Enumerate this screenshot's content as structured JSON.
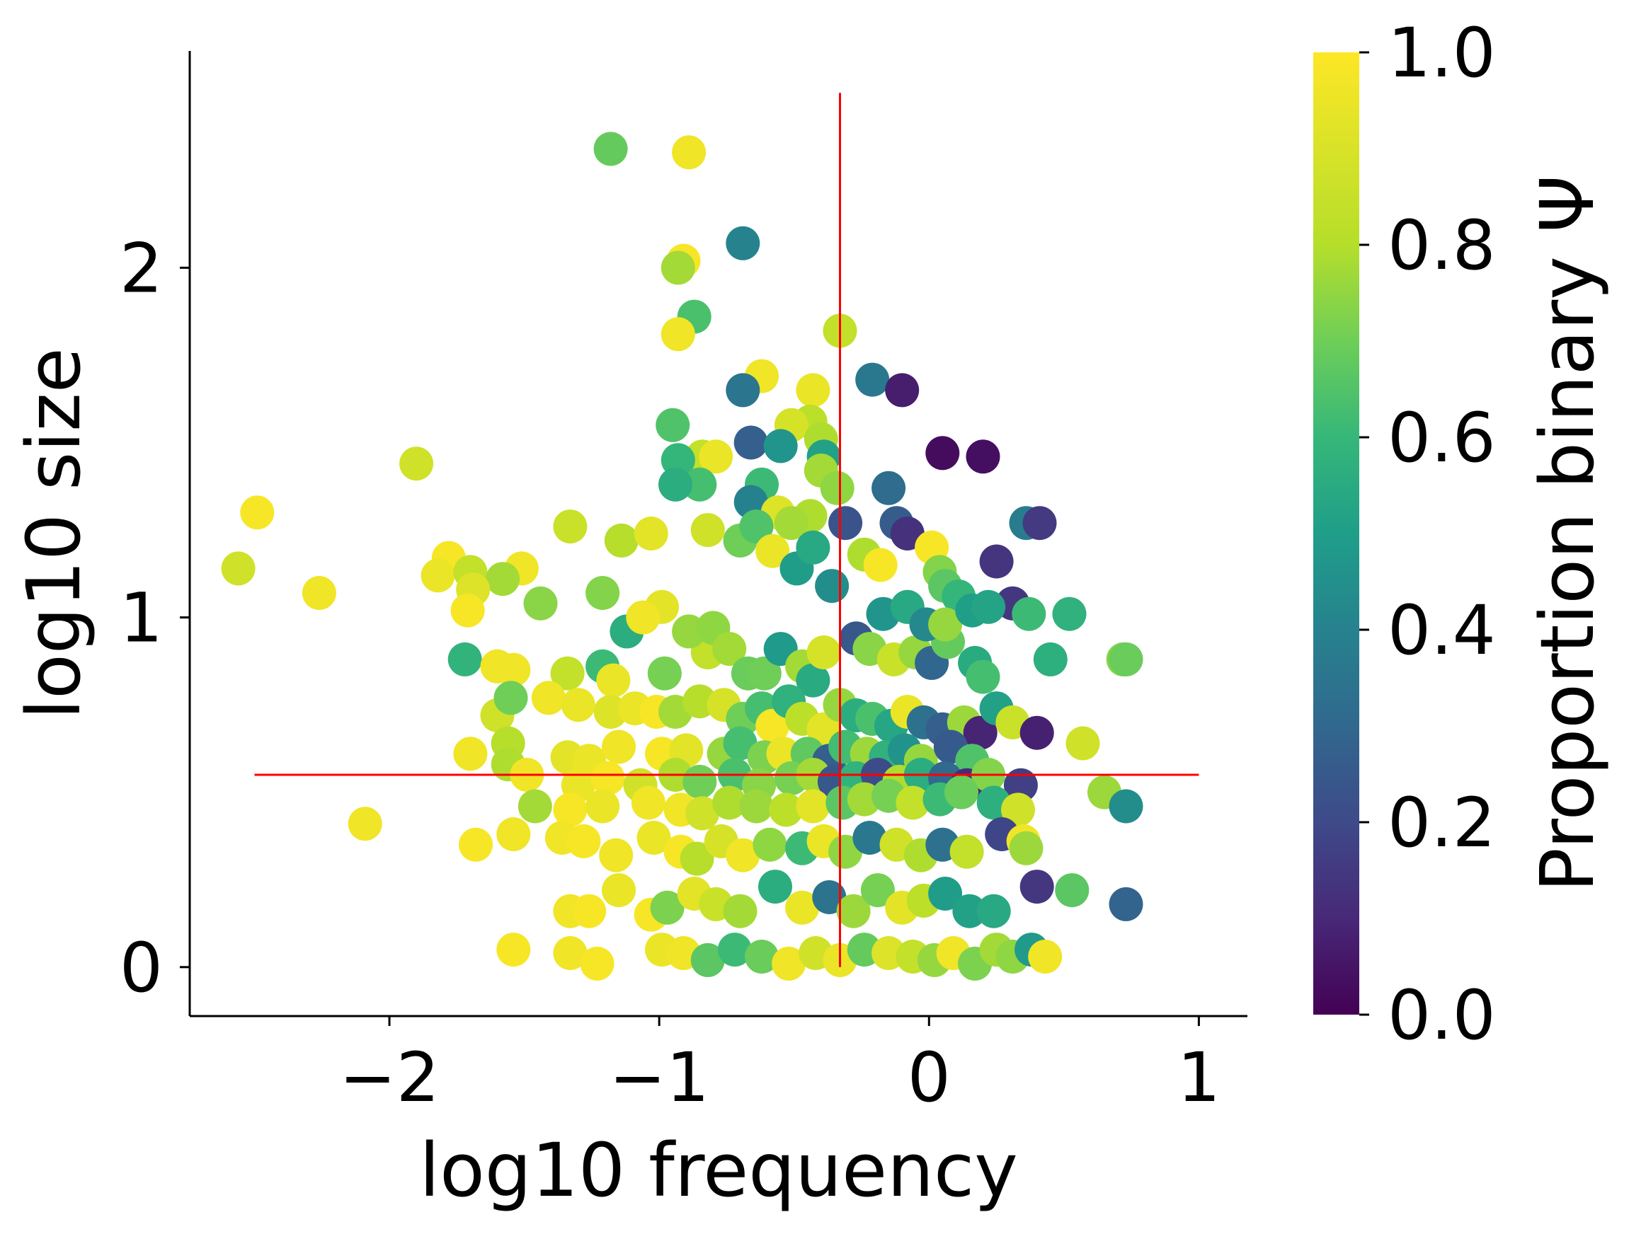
{
  "chart_data": {
    "type": "scatter",
    "xlabel": "log10 frequency",
    "ylabel": "log10 size",
    "xlim": [
      -2.74,
      1.18
    ],
    "ylim": [
      -0.14,
      2.62
    ],
    "xticks": [
      -2,
      -1,
      0,
      1
    ],
    "xtick_labels": [
      "−2",
      "−1",
      "0",
      "1"
    ],
    "yticks": [
      0,
      1,
      2
    ],
    "ytick_labels": [
      "0",
      "1",
      "2"
    ],
    "grid": false,
    "colorbar": {
      "label": "Proportion binary Ψ",
      "range": [
        0,
        1
      ],
      "ticks": [
        0.0,
        0.2,
        0.4,
        0.6,
        0.8,
        1.0
      ],
      "tick_labels": [
        "0.0",
        "0.2",
        "0.4",
        "0.6",
        "0.8",
        "1.0"
      ],
      "colormap": "viridis"
    },
    "reference_lines": [
      {
        "orientation": "vertical",
        "x": -0.33,
        "y_range": [
          0.0,
          2.5
        ],
        "color": "#ff0000"
      },
      {
        "orientation": "horizontal",
        "y": 0.55,
        "x_range": [
          -2.5,
          1.0
        ],
        "color": "#ff0000"
      }
    ],
    "points": [
      [
        -1.18,
        2.34,
        0.76
      ],
      [
        -0.89,
        2.33,
        0.98
      ],
      [
        -0.69,
        2.07,
        0.45
      ],
      [
        -0.91,
        2.02,
        0.99
      ],
      [
        -0.93,
        2.0,
        0.86
      ],
      [
        -0.87,
        1.86,
        0.71
      ],
      [
        -0.93,
        1.81,
        0.98
      ],
      [
        -0.62,
        1.69,
        0.98
      ],
      [
        -0.33,
        1.82,
        0.91
      ],
      [
        -0.21,
        1.68,
        0.4
      ],
      [
        -0.1,
        1.65,
        0.08
      ],
      [
        -0.69,
        1.65,
        0.39
      ],
      [
        -0.43,
        1.65,
        0.97
      ],
      [
        -0.44,
        1.56,
        0.9
      ],
      [
        -0.51,
        1.55,
        0.94
      ],
      [
        -0.95,
        1.55,
        0.72
      ],
      [
        -0.66,
        1.5,
        0.3
      ],
      [
        -0.55,
        1.49,
        0.52
      ],
      [
        -0.4,
        1.51,
        0.88
      ],
      [
        -0.39,
        1.46,
        0.57
      ],
      [
        -0.84,
        1.46,
        0.91
      ],
      [
        -0.79,
        1.46,
        0.97
      ],
      [
        -0.93,
        1.45,
        0.66
      ],
      [
        -1.9,
        1.44,
        0.93
      ],
      [
        0.05,
        1.47,
        0.03
      ],
      [
        0.2,
        1.46,
        0.04
      ],
      [
        -0.4,
        1.42,
        0.86
      ],
      [
        -0.34,
        1.37,
        0.83
      ],
      [
        -0.15,
        1.37,
        0.35
      ],
      [
        -0.62,
        1.38,
        0.68
      ],
      [
        -0.85,
        1.38,
        0.7
      ],
      [
        -0.94,
        1.38,
        0.62
      ],
      [
        -0.66,
        1.33,
        0.44
      ],
      [
        -0.56,
        1.3,
        0.95
      ],
      [
        -0.44,
        1.29,
        0.88
      ],
      [
        -0.31,
        1.27,
        0.26
      ],
      [
        -0.12,
        1.27,
        0.29
      ],
      [
        -0.08,
        1.24,
        0.14
      ],
      [
        0.36,
        1.27,
        0.42
      ],
      [
        0.41,
        1.27,
        0.17
      ],
      [
        -2.49,
        1.3,
        0.99
      ],
      [
        -2.56,
        1.14,
        0.93
      ],
      [
        -2.26,
        1.07,
        0.98
      ],
      [
        -1.78,
        1.17,
        0.99
      ],
      [
        -1.82,
        1.12,
        0.97
      ],
      [
        -1.7,
        1.13,
        0.91
      ],
      [
        -1.51,
        1.14,
        0.98
      ],
      [
        -1.58,
        1.11,
        0.86
      ],
      [
        -1.69,
        1.08,
        0.95
      ],
      [
        -1.71,
        1.02,
        0.99
      ],
      [
        -1.44,
        1.04,
        0.82
      ],
      [
        -1.33,
        1.26,
        0.92
      ],
      [
        -1.14,
        1.22,
        0.89
      ],
      [
        -1.03,
        1.24,
        0.96
      ],
      [
        -1.21,
        1.07,
        0.81
      ],
      [
        -1.12,
        0.96,
        0.62
      ],
      [
        -0.99,
        1.03,
        0.96
      ],
      [
        -1.06,
        1.0,
        0.98
      ],
      [
        -0.82,
        1.25,
        0.93
      ],
      [
        -0.7,
        1.22,
        0.78
      ],
      [
        -0.64,
        1.26,
        0.72
      ],
      [
        -0.58,
        1.19,
        0.97
      ],
      [
        -0.51,
        1.27,
        0.86
      ],
      [
        -0.49,
        1.14,
        0.55
      ],
      [
        -0.43,
        1.2,
        0.6
      ],
      [
        -0.36,
        1.09,
        0.49
      ],
      [
        -0.24,
        1.18,
        0.88
      ],
      [
        -0.18,
        1.15,
        0.99
      ],
      [
        0.01,
        1.2,
        0.99
      ],
      [
        0.04,
        1.13,
        0.81
      ],
      [
        0.06,
        1.09,
        0.74
      ],
      [
        0.11,
        1.06,
        0.66
      ],
      [
        0.25,
        1.16,
        0.15
      ],
      [
        0.31,
        1.04,
        0.16
      ],
      [
        0.37,
        1.01,
        0.68
      ],
      [
        0.52,
        1.01,
        0.64
      ],
      [
        0.45,
        0.88,
        0.63
      ],
      [
        0.72,
        0.88,
        0.81
      ],
      [
        0.73,
        0.88,
        0.77
      ],
      [
        -1.72,
        0.88,
        0.65
      ],
      [
        -1.6,
        0.86,
        0.98
      ],
      [
        -1.54,
        0.85,
        0.98
      ],
      [
        -1.34,
        0.84,
        0.91
      ],
      [
        -1.21,
        0.86,
        0.68
      ],
      [
        -1.17,
        0.82,
        0.97
      ],
      [
        -0.98,
        0.84,
        0.79
      ],
      [
        -0.82,
        0.9,
        0.91
      ],
      [
        -0.89,
        0.96,
        0.84
      ],
      [
        -0.8,
        0.97,
        0.83
      ],
      [
        -0.74,
        0.91,
        0.86
      ],
      [
        -0.67,
        0.84,
        0.77
      ],
      [
        -0.61,
        0.84,
        0.78
      ],
      [
        -0.55,
        0.91,
        0.54
      ],
      [
        -0.47,
        0.86,
        0.86
      ],
      [
        -0.43,
        0.82,
        0.61
      ],
      [
        -0.39,
        0.9,
        0.94
      ],
      [
        -0.27,
        0.94,
        0.27
      ],
      [
        -0.22,
        0.91,
        0.82
      ],
      [
        -0.13,
        0.88,
        0.92
      ],
      [
        -0.05,
        0.9,
        0.84
      ],
      [
        0.01,
        0.87,
        0.33
      ],
      [
        0.07,
        0.93,
        0.76
      ],
      [
        0.17,
        0.87,
        0.61
      ],
      [
        0.2,
        0.83,
        0.7
      ],
      [
        -0.17,
        1.01,
        0.52
      ],
      [
        -0.08,
        1.03,
        0.6
      ],
      [
        -0.01,
        0.98,
        0.47
      ],
      [
        0.06,
        0.98,
        0.84
      ],
      [
        0.16,
        1.02,
        0.56
      ],
      [
        0.22,
        1.03,
        0.58
      ],
      [
        -1.6,
        0.72,
        0.93
      ],
      [
        -1.55,
        0.77,
        0.78
      ],
      [
        -1.41,
        0.77,
        0.98
      ],
      [
        -1.3,
        0.75,
        0.97
      ],
      [
        -1.18,
        0.73,
        0.95
      ],
      [
        -1.09,
        0.74,
        0.97
      ],
      [
        -1.01,
        0.73,
        0.99
      ],
      [
        -0.94,
        0.73,
        0.86
      ],
      [
        -0.85,
        0.76,
        0.89
      ],
      [
        -0.76,
        0.75,
        0.94
      ],
      [
        -0.69,
        0.71,
        0.78
      ],
      [
        -0.62,
        0.74,
        0.7
      ],
      [
        -0.58,
        0.69,
        0.99
      ],
      [
        -0.52,
        0.76,
        0.64
      ],
      [
        -0.47,
        0.71,
        0.9
      ],
      [
        -0.39,
        0.68,
        0.96
      ],
      [
        -0.33,
        0.75,
        0.84
      ],
      [
        -0.27,
        0.72,
        0.62
      ],
      [
        -0.21,
        0.71,
        0.71
      ],
      [
        -0.14,
        0.69,
        0.59
      ],
      [
        -0.08,
        0.73,
        0.97
      ],
      [
        -0.02,
        0.7,
        0.37
      ],
      [
        0.05,
        0.68,
        0.3
      ],
      [
        0.13,
        0.7,
        0.85
      ],
      [
        0.19,
        0.67,
        0.1
      ],
      [
        0.25,
        0.74,
        0.57
      ],
      [
        0.31,
        0.7,
        0.92
      ],
      [
        0.4,
        0.67,
        0.09
      ],
      [
        0.57,
        0.64,
        0.93
      ],
      [
        -1.7,
        0.61,
        0.98
      ],
      [
        -1.56,
        0.64,
        0.89
      ],
      [
        -1.56,
        0.58,
        0.88
      ],
      [
        -1.34,
        0.6,
        0.96
      ],
      [
        -1.26,
        0.59,
        0.97
      ],
      [
        -1.15,
        0.63,
        0.98
      ],
      [
        -0.99,
        0.61,
        0.99
      ],
      [
        -0.9,
        0.62,
        0.96
      ],
      [
        -0.76,
        0.61,
        0.84
      ],
      [
        -0.7,
        0.64,
        0.7
      ],
      [
        -0.61,
        0.6,
        0.8
      ],
      [
        -0.54,
        0.61,
        0.97
      ],
      [
        -0.45,
        0.61,
        0.75
      ],
      [
        -0.37,
        0.59,
        0.3
      ],
      [
        -0.31,
        0.63,
        0.69
      ],
      [
        -0.23,
        0.61,
        0.85
      ],
      [
        -0.16,
        0.6,
        0.64
      ],
      [
        -0.09,
        0.62,
        0.51
      ],
      [
        -0.03,
        0.59,
        0.84
      ],
      [
        0.08,
        0.63,
        0.28
      ],
      [
        0.16,
        0.59,
        0.72
      ],
      [
        -1.49,
        0.55,
        0.98
      ],
      [
        -1.3,
        0.52,
        0.97
      ],
      [
        -1.19,
        0.54,
        0.99
      ],
      [
        -1.07,
        0.52,
        0.93
      ],
      [
        -0.94,
        0.55,
        0.88
      ],
      [
        -0.85,
        0.53,
        0.78
      ],
      [
        -0.72,
        0.55,
        0.71
      ],
      [
        -0.63,
        0.52,
        0.82
      ],
      [
        -0.51,
        0.54,
        0.79
      ],
      [
        -0.43,
        0.55,
        0.86
      ],
      [
        -0.35,
        0.53,
        0.27
      ],
      [
        -0.27,
        0.54,
        0.65
      ],
      [
        -0.19,
        0.55,
        0.23
      ],
      [
        -0.11,
        0.53,
        0.88
      ],
      [
        -0.03,
        0.55,
        0.62
      ],
      [
        0.06,
        0.54,
        0.34
      ],
      [
        0.14,
        0.52,
        0.12
      ],
      [
        0.22,
        0.55,
        0.81
      ],
      [
        0.34,
        0.52,
        0.19
      ],
      [
        0.65,
        0.5,
        0.85
      ],
      [
        0.73,
        0.46,
        0.49
      ],
      [
        -2.09,
        0.41,
        0.98
      ],
      [
        -1.46,
        0.46,
        0.86
      ],
      [
        -1.33,
        0.45,
        0.99
      ],
      [
        -1.21,
        0.46,
        0.97
      ],
      [
        -1.04,
        0.47,
        0.98
      ],
      [
        -0.92,
        0.45,
        0.98
      ],
      [
        -0.84,
        0.44,
        0.93
      ],
      [
        -0.74,
        0.47,
        0.88
      ],
      [
        -0.64,
        0.46,
        0.85
      ],
      [
        -0.53,
        0.45,
        0.9
      ],
      [
        -0.43,
        0.46,
        0.96
      ],
      [
        -0.32,
        0.47,
        0.74
      ],
      [
        -0.24,
        0.48,
        0.86
      ],
      [
        -0.15,
        0.49,
        0.79
      ],
      [
        -0.06,
        0.47,
        0.91
      ],
      [
        0.04,
        0.48,
        0.68
      ],
      [
        0.12,
        0.5,
        0.77
      ],
      [
        0.24,
        0.47,
        0.63
      ],
      [
        0.33,
        0.45,
        0.93
      ],
      [
        -1.68,
        0.35,
        0.99
      ],
      [
        -1.54,
        0.38,
        0.98
      ],
      [
        -1.36,
        0.37,
        0.98
      ],
      [
        -1.28,
        0.36,
        0.99
      ],
      [
        -1.16,
        0.32,
        0.98
      ],
      [
        -1.02,
        0.37,
        0.97
      ],
      [
        -0.92,
        0.33,
        0.99
      ],
      [
        -0.86,
        0.31,
        0.89
      ],
      [
        -0.77,
        0.36,
        0.94
      ],
      [
        -0.69,
        0.32,
        0.98
      ],
      [
        -0.59,
        0.35,
        0.83
      ],
      [
        -0.47,
        0.34,
        0.68
      ],
      [
        -0.39,
        0.36,
        0.97
      ],
      [
        -0.31,
        0.33,
        0.83
      ],
      [
        -0.22,
        0.37,
        0.4
      ],
      [
        -0.12,
        0.35,
        0.93
      ],
      [
        -0.03,
        0.32,
        0.88
      ],
      [
        0.05,
        0.35,
        0.37
      ],
      [
        0.14,
        0.33,
        0.91
      ],
      [
        0.27,
        0.38,
        0.21
      ],
      [
        0.35,
        0.36,
        0.98
      ],
      [
        0.36,
        0.34,
        0.85
      ],
      [
        -1.33,
        0.16,
        0.98
      ],
      [
        -1.26,
        0.16,
        0.99
      ],
      [
        -1.15,
        0.22,
        0.97
      ],
      [
        -1.03,
        0.15,
        0.99
      ],
      [
        -0.97,
        0.17,
        0.8
      ],
      [
        -0.87,
        0.21,
        0.96
      ],
      [
        -0.79,
        0.18,
        0.92
      ],
      [
        -0.7,
        0.16,
        0.86
      ],
      [
        -0.57,
        0.23,
        0.62
      ],
      [
        -0.47,
        0.17,
        0.97
      ],
      [
        -0.37,
        0.2,
        0.38
      ],
      [
        -0.28,
        0.16,
        0.85
      ],
      [
        -0.19,
        0.22,
        0.79
      ],
      [
        -0.1,
        0.17,
        0.96
      ],
      [
        -0.02,
        0.19,
        0.9
      ],
      [
        0.06,
        0.21,
        0.55
      ],
      [
        0.15,
        0.16,
        0.57
      ],
      [
        0.24,
        0.16,
        0.6
      ],
      [
        0.4,
        0.23,
        0.16
      ],
      [
        0.53,
        0.22,
        0.74
      ],
      [
        0.73,
        0.18,
        0.32
      ],
      [
        -1.54,
        0.05,
        0.99
      ],
      [
        -1.33,
        0.04,
        0.98
      ],
      [
        -1.23,
        0.01,
        0.99
      ],
      [
        -0.99,
        0.05,
        0.97
      ],
      [
        -0.91,
        0.04,
        0.98
      ],
      [
        -0.82,
        0.02,
        0.74
      ],
      [
        -0.72,
        0.05,
        0.68
      ],
      [
        -0.62,
        0.03,
        0.77
      ],
      [
        -0.52,
        0.01,
        0.98
      ],
      [
        -0.42,
        0.04,
        0.93
      ],
      [
        -0.33,
        0.02,
        0.97
      ],
      [
        -0.24,
        0.05,
        0.76
      ],
      [
        -0.15,
        0.04,
        0.95
      ],
      [
        -0.06,
        0.03,
        0.91
      ],
      [
        0.02,
        0.02,
        0.84
      ],
      [
        0.09,
        0.04,
        0.98
      ],
      [
        0.17,
        0.01,
        0.8
      ],
      [
        0.25,
        0.05,
        0.86
      ],
      [
        0.31,
        0.03,
        0.83
      ],
      [
        0.38,
        0.05,
        0.54
      ],
      [
        0.43,
        0.03,
        0.98
      ]
    ]
  }
}
